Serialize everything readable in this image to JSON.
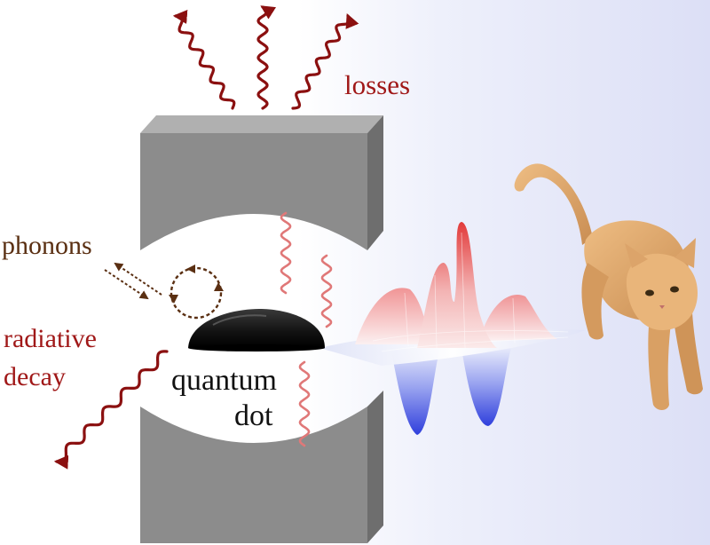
{
  "labels": {
    "losses": "losses",
    "phonons": "phonons",
    "radiative_line1": "radiative",
    "radiative_line2": "decay",
    "qd_line1": "quantum",
    "qd_line2": "dot"
  },
  "colors": {
    "loss_photon": "#8b1010",
    "cavity_photon": "#e07878",
    "phonon": "#5a2f12",
    "mirror_front": "#8c8c8c",
    "mirror_top": "#b0b0b0",
    "mirror_side": "#6e6e6e",
    "quantum_dot": "#1a1a1a",
    "wigner_positive": "#e04848",
    "wigner_negative": "#3a48e0",
    "cat_fur": "#e2ad72"
  },
  "icons": {
    "cat": "kitten-icon",
    "wigner": "wigner-function-surface"
  }
}
